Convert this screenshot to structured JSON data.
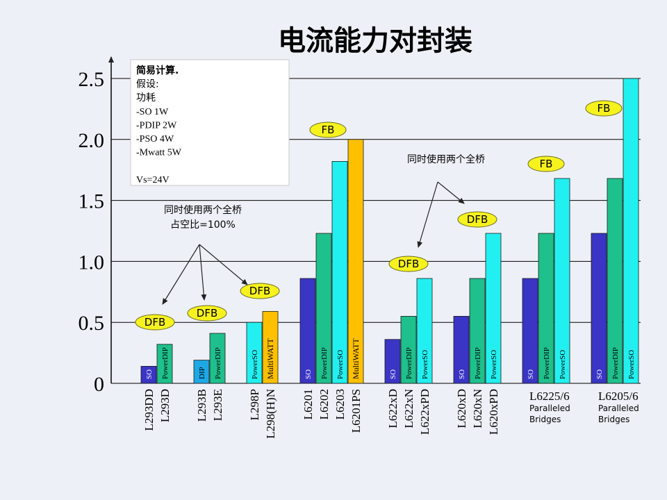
{
  "title": "电流能力对封装",
  "colors": {
    "SO": "#3a35c4",
    "DIP": "#1ea8e6",
    "PowerDIP": "#1ec08c",
    "PowerSO": "#22f0f0",
    "MultiWATT": "#ffc000",
    "title": "#1a1a8c",
    "badge_fill": "#f6f21e",
    "badge_stroke": "#6a6a20"
  },
  "chart_data": {
    "type": "bar",
    "title": "电流能力对封装",
    "ylim": [
      0,
      2.5
    ],
    "yticks": [
      "0",
      "0.5",
      "1.0",
      "1.5",
      "2.0",
      "2.5"
    ],
    "ytick_values": [
      0,
      0.5,
      1.0,
      1.5,
      2.0,
      2.5
    ],
    "grid": true,
    "groups": [
      {
        "labels": [
          "L293DD",
          "L293D"
        ],
        "bars": [
          {
            "pkg": "SO",
            "text": "SO",
            "value": 0.14
          },
          {
            "pkg": "PowerDIP",
            "text": "PowerDIP",
            "value": 0.32
          }
        ],
        "badge": "DFB"
      },
      {
        "labels": [
          "L293B",
          "L293E"
        ],
        "bars": [
          {
            "pkg": "DIP",
            "text": "DIP",
            "value": 0.19
          },
          {
            "pkg": "PowerDIP",
            "text": "PowerDIP",
            "value": 0.41
          }
        ],
        "badge": "DFB"
      },
      {
        "labels": [
          "L298P",
          "L298(H)N"
        ],
        "bars": [
          {
            "pkg": "PowerSO",
            "text": "PowerSO",
            "value": 0.5
          },
          {
            "pkg": "MultiWATT",
            "text": "MultiWATT",
            "value": 0.59
          }
        ],
        "badge": "DFB"
      },
      {
        "labels": [
          "L6201",
          "L6202",
          "L6203",
          "L6201PS"
        ],
        "bars": [
          {
            "pkg": "SO",
            "text": "SO",
            "value": 0.86
          },
          {
            "pkg": "PowerDIP",
            "text": "PowerDIP",
            "value": 1.23
          },
          {
            "pkg": "PowerSO",
            "text": "PowerSO",
            "value": 1.82
          },
          {
            "pkg": "MultiWATT",
            "text": "MultiWATT",
            "value": 2.0
          }
        ],
        "badge": "FB"
      },
      {
        "labels": [
          "L622xD",
          "L622xN",
          "L622xPD"
        ],
        "bars": [
          {
            "pkg": "SO",
            "text": "SO",
            "value": 0.36
          },
          {
            "pkg": "PowerDIP",
            "text": "PowerDIP",
            "value": 0.55
          },
          {
            "pkg": "PowerSO",
            "text": "PowerSO",
            "value": 0.86
          }
        ],
        "badge": "DFB"
      },
      {
        "labels": [
          "L620xD",
          "L620xN",
          "L620xPD"
        ],
        "bars": [
          {
            "pkg": "SO",
            "text": "SO",
            "value": 0.55
          },
          {
            "pkg": "PowerDIP",
            "text": "PowerDIP",
            "value": 0.86
          },
          {
            "pkg": "PowerSO",
            "text": "PowerSO",
            "value": 1.23
          }
        ],
        "badge": "DFB"
      },
      {
        "labels": [
          "L6225/6"
        ],
        "sublabel": [
          "Paralleled",
          "Bridges"
        ],
        "bars": [
          {
            "pkg": "SO",
            "text": "SO",
            "value": 0.86
          },
          {
            "pkg": "PowerDIP",
            "text": "PowerDIP",
            "value": 1.23
          },
          {
            "pkg": "PowerSO",
            "text": "PowerSO",
            "value": 1.68
          }
        ],
        "badge": "FB"
      },
      {
        "labels": [
          "L6205/6"
        ],
        "sublabel": [
          "Paralleled",
          "Bridges"
        ],
        "bars": [
          {
            "pkg": "SO",
            "text": "SO",
            "value": 1.23
          },
          {
            "pkg": "PowerDIP",
            "text": "PowerDIP",
            "value": 1.68
          },
          {
            "pkg": "PowerSO",
            "text": "PowerSO",
            "value": 2.5
          }
        ],
        "badge": "FB"
      }
    ]
  },
  "info_box": {
    "lines": [
      "简易计算.",
      "假设:",
      "功耗",
      "-SO 1W",
      "-PDIP 2W",
      "-PSO 4W",
      "-Mwatt 5W",
      "",
      "Vs=24V"
    ]
  },
  "annotations": {
    "left": [
      "同时使用两个全桥",
      "占空比=100%"
    ],
    "right": "同时使用两个全桥"
  }
}
